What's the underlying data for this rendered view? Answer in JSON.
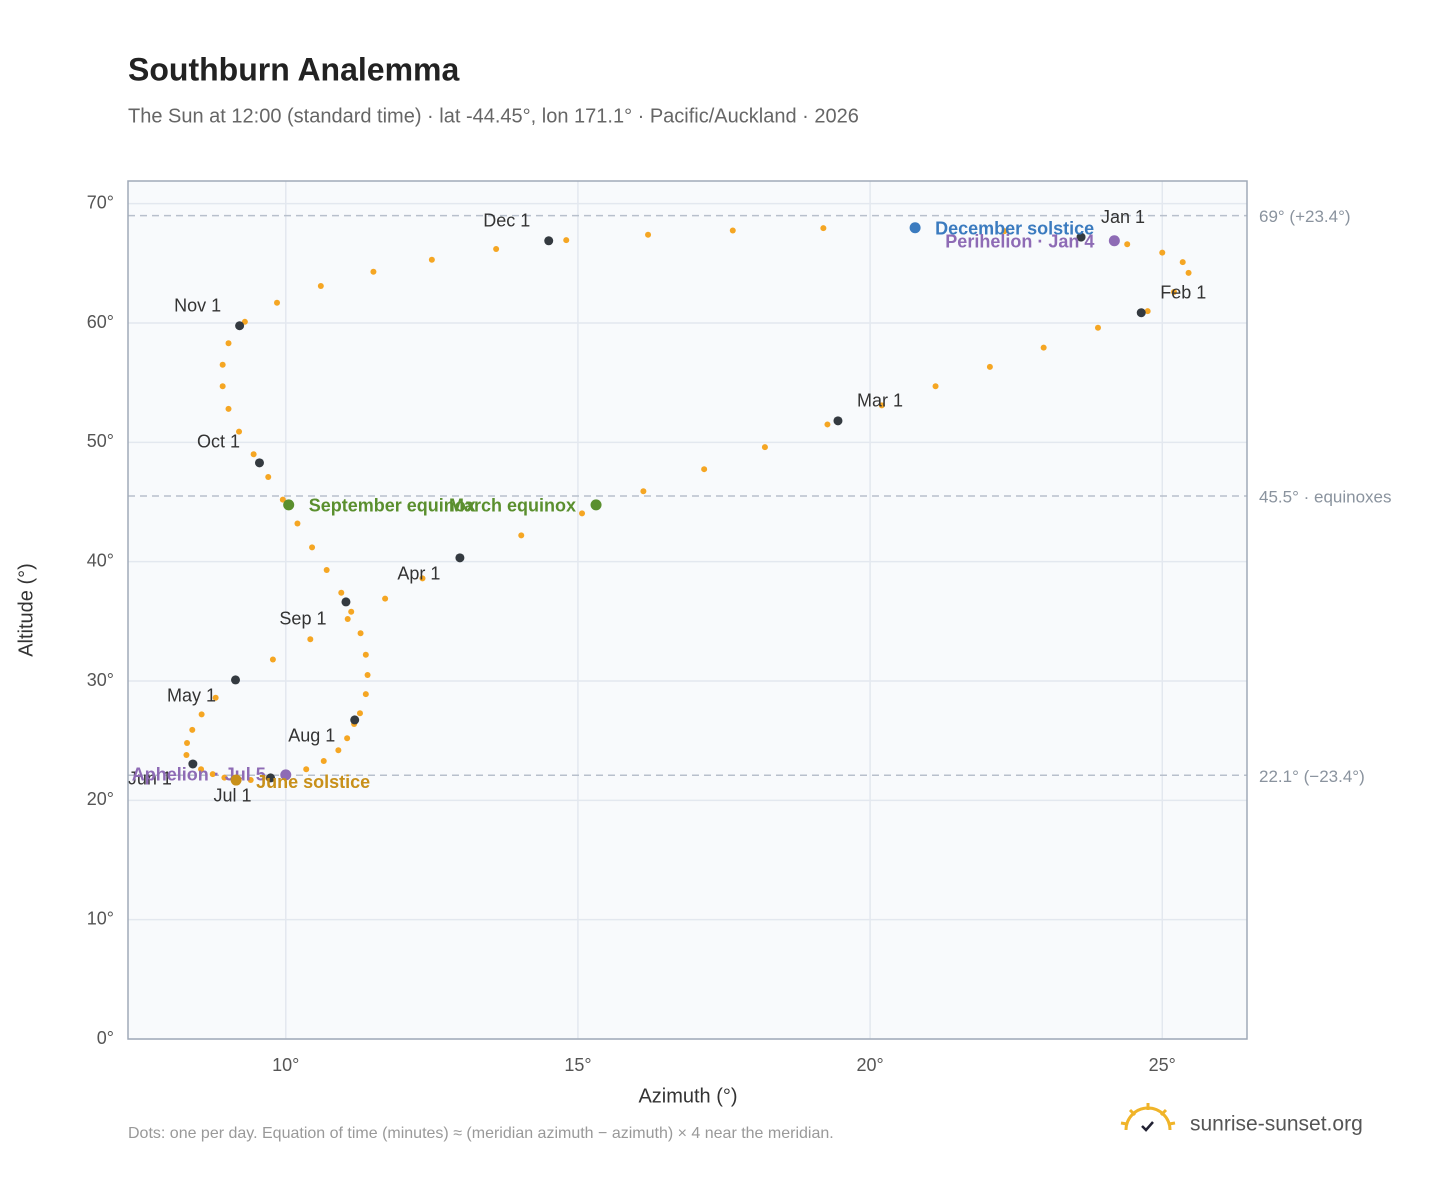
{
  "chart_data": {
    "type": "scatter",
    "title": "Southburn Analemma",
    "subtitle": "The Sun at 12:00 (standard time) · lat -44.45°, lon 171.1° · Pacific/Auckland · 2026",
    "x_label": "Azimuth (°)",
    "y_label": "Altitude (°)",
    "xlim": [
      7.3,
      26.45
    ],
    "ylim": [
      0,
      71.9
    ],
    "xticks": [
      {
        "value": 10,
        "label": "10°"
      },
      {
        "value": 15,
        "label": "15°"
      },
      {
        "value": 20,
        "label": "20°"
      },
      {
        "value": 25,
        "label": "25°"
      }
    ],
    "yticks": [
      {
        "value": 0,
        "label": "0°"
      },
      {
        "value": 10,
        "label": "10°"
      },
      {
        "value": 20,
        "label": "20°"
      },
      {
        "value": 30,
        "label": "30°"
      },
      {
        "value": 40,
        "label": "40°"
      },
      {
        "value": 50,
        "label": "50°"
      },
      {
        "value": 60,
        "label": "60°"
      },
      {
        "value": 70,
        "label": "70°"
      }
    ],
    "grid": true,
    "series": [
      {
        "color": "#f5a623",
        "x": [
          23.61,
          24.4,
          25.0,
          25.35,
          25.45,
          25.2,
          24.75,
          23.9,
          22.97,
          22.05,
          21.12,
          20.2,
          19.27,
          18.2,
          17.16,
          16.12,
          15.07,
          14.03,
          12.98,
          12.34,
          11.7,
          11.06,
          10.42,
          9.78,
          9.14,
          8.8,
          8.56,
          8.4,
          8.31,
          8.3,
          8.4,
          8.55,
          8.75,
          8.95,
          9.15,
          9.4,
          9.7,
          10.0,
          10.35,
          10.65,
          10.9,
          11.05,
          11.17,
          11.27,
          11.37,
          11.4,
          11.37,
          11.28,
          11.12,
          10.95,
          10.7,
          10.45,
          10.2,
          9.95,
          9.7,
          9.45,
          9.2,
          9.02,
          8.92,
          8.92,
          9.02,
          9.3,
          9.85,
          10.6,
          11.5,
          12.5,
          13.6,
          14.8,
          16.2,
          17.65,
          19.2,
          20.8,
          22.3
        ],
        "y": [
          67.2,
          66.6,
          65.9,
          65.1,
          64.2,
          62.6,
          61.0,
          59.6,
          57.94,
          56.32,
          54.7,
          53.1,
          51.5,
          49.6,
          47.75,
          45.9,
          44.05,
          42.2,
          40.32,
          38.6,
          36.9,
          35.2,
          33.5,
          31.8,
          30.09,
          28.6,
          27.2,
          25.9,
          24.8,
          23.8,
          23.1,
          22.6,
          22.2,
          21.9,
          21.75,
          21.7,
          21.85,
          22.13,
          22.6,
          23.3,
          24.2,
          25.2,
          26.4,
          27.3,
          28.9,
          30.5,
          32.2,
          34.0,
          35.8,
          37.4,
          39.3,
          41.2,
          43.2,
          45.2,
          47.1,
          49.0,
          50.9,
          52.8,
          54.7,
          56.5,
          58.3,
          60.1,
          61.7,
          63.1,
          64.3,
          65.3,
          66.2,
          66.95,
          67.4,
          67.75,
          67.95,
          68.0,
          67.7
        ]
      }
    ],
    "months": {
      "color": "#343a40",
      "labels": [
        "Jan 1",
        "Feb 1",
        "Mar 1",
        "Apr 1",
        "May 1",
        "Jun 1",
        "Jul 1",
        "Aug 1",
        "Sep 1",
        "Oct 1",
        "Nov 1",
        "Dec 1"
      ],
      "x": [
        23.61,
        24.64,
        19.45,
        12.98,
        9.14,
        8.41,
        9.74,
        11.18,
        11.03,
        9.55,
        9.21,
        14.5
      ],
      "y": [
        67.2,
        60.86,
        51.8,
        40.32,
        30.09,
        23.05,
        21.88,
        26.74,
        36.63,
        48.28,
        59.77,
        66.89
      ]
    },
    "events": [
      {
        "label": "December solstice",
        "x": 20.77,
        "y": 67.98,
        "color": "#3b7bbf"
      },
      {
        "label": "Perihelion · Jan 4",
        "x": 24.18,
        "y": 66.89,
        "color": "#8e6bb5"
      },
      {
        "label": "March equinox",
        "x": 15.31,
        "y": 44.76,
        "color": "#5a8f2e"
      },
      {
        "label": "September equinox",
        "x": 10.05,
        "y": 44.76,
        "color": "#5a8f2e"
      },
      {
        "label": "Aphelion · Jul 5",
        "x": 10.0,
        "y": 22.13,
        "color": "#8e6bb5"
      },
      {
        "label": "June solstice",
        "x": 9.15,
        "y": 21.7,
        "color": "#c8901a"
      }
    ],
    "reference_lines": [
      {
        "value": 69,
        "label": "69° (+23.4°)"
      },
      {
        "value": 45.5,
        "label": "45.5° · equinoxes"
      },
      {
        "value": 22.1,
        "label": "22.1° (−23.4°)"
      }
    ],
    "note": "Dots: one per day. Equation of time (minutes) ≈ (meridian azimuth − azimuth) × 4 near the meridian.",
    "brand": "sunrise-sunset.org"
  }
}
